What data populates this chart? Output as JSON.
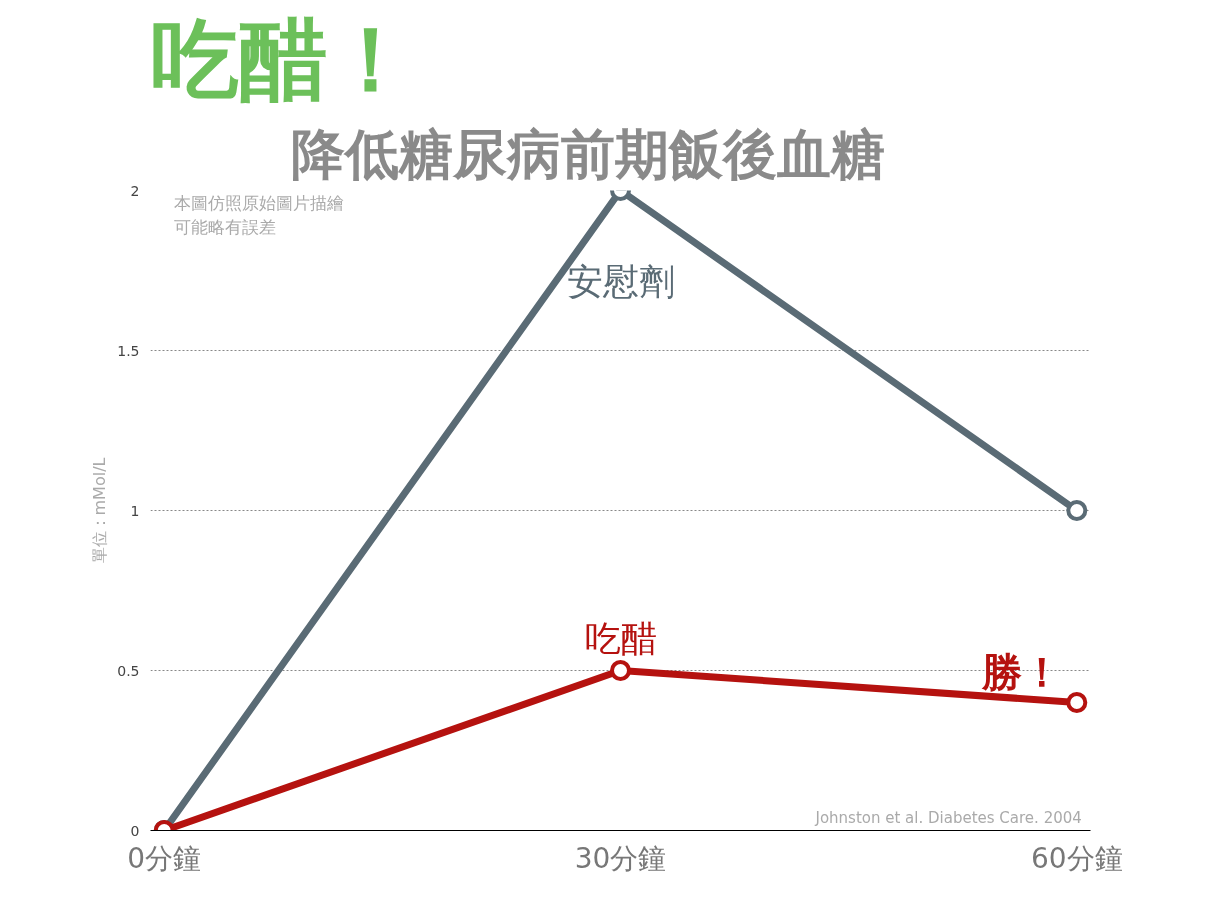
{
  "chart_data": {
    "type": "line",
    "title": "吃醋！",
    "subtitle": "降低糖尿病前期飯後血糖",
    "ylabel": "單位：mMol/L",
    "categories": [
      "0分鐘",
      "30分鐘",
      "60分鐘"
    ],
    "series": [
      {
        "name": "安慰劑",
        "color": "#5a6b75",
        "values": [
          0,
          2,
          1
        ]
      },
      {
        "name": "吃醋",
        "color": "#b5120f",
        "values": [
          0,
          0.5,
          0.4
        ]
      }
    ],
    "ylim": [
      0,
      2
    ],
    "yticks": [
      0,
      0.5,
      1,
      1.5,
      2
    ],
    "grid": "y",
    "marker": "circle",
    "line_style": "solid",
    "annotations": [
      "本圖仿照原始圖片描繪",
      "可能略有誤差",
      "Johnston et al. Diabetes Care. 2004",
      "勝！"
    ]
  }
}
